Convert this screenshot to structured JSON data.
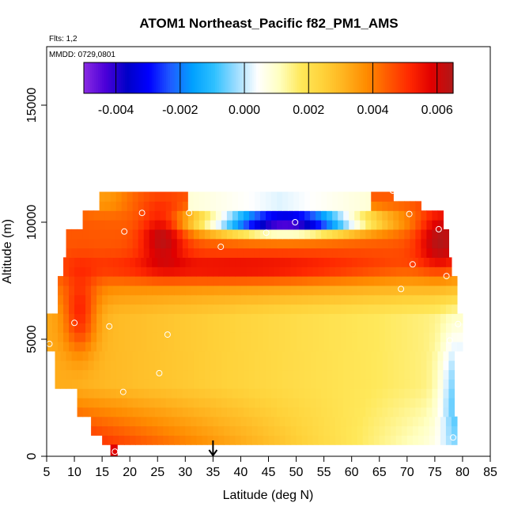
{
  "chart_data": {
    "type": "heatmap",
    "title": "ATOM1 Northeast_Pacific f82_PM1_AMS",
    "flights_text": "Flts: 1,2",
    "mmdd_text": "MMDD: 0729,0801",
    "xlabel": "Latitude (deg N)",
    "ylabel": "Altitude (m)",
    "xlim": [
      5,
      85
    ],
    "ylim": [
      0,
      17500
    ],
    "x_ticks": [
      "5",
      "10",
      "15",
      "20",
      "25",
      "30",
      "35",
      "40",
      "45",
      "50",
      "55",
      "60",
      "65",
      "70",
      "75",
      "80",
      "85"
    ],
    "x_tick_values": [
      5,
      10,
      15,
      20,
      25,
      30,
      35,
      40,
      45,
      50,
      55,
      60,
      65,
      70,
      75,
      80,
      85
    ],
    "y_ticks": [
      "0",
      "5000",
      "10000",
      "15000"
    ],
    "y_tick_values": [
      0,
      5000,
      10000,
      15000
    ],
    "colorbar": {
      "range": [
        -0.005,
        0.0065
      ],
      "ticks": [
        "-0.004",
        "-0.002",
        "0.000",
        "0.002",
        "0.004",
        "0.006"
      ],
      "tick_values": [
        -0.004,
        -0.002,
        0.0,
        0.002,
        0.004,
        0.006
      ],
      "colors": [
        "#8a2be2",
        "#4b00d9",
        "#0000c8",
        "#0000ff",
        "#1f5cff",
        "#00a0ff",
        "#2ec0ff",
        "#9adcff",
        "#ffffff",
        "#ffffc0",
        "#ffe85a",
        "#ffd23a",
        "#ffb21e",
        "#ff8c00",
        "#ff5a00",
        "#ff2800",
        "#e00000",
        "#b01818"
      ]
    },
    "marker_x": 35,
    "points": [
      {
        "lat": 5.5,
        "alt": 4800
      },
      {
        "lat": 10,
        "alt": 5700
      },
      {
        "lat": 16.3,
        "alt": 5550
      },
      {
        "lat": 17.3,
        "alt": 200
      },
      {
        "lat": 18.8,
        "alt": 2750
      },
      {
        "lat": 19,
        "alt": 9600
      },
      {
        "lat": 22.2,
        "alt": 10400
      },
      {
        "lat": 25.3,
        "alt": 3550
      },
      {
        "lat": 26.8,
        "alt": 5200
      },
      {
        "lat": 30.7,
        "alt": 10400
      },
      {
        "lat": 36.4,
        "alt": 8950
      },
      {
        "lat": 44.6,
        "alt": 9550
      },
      {
        "lat": 49.8,
        "alt": 10000
      },
      {
        "lat": 67.4,
        "alt": 11350
      },
      {
        "lat": 68.9,
        "alt": 7150
      },
      {
        "lat": 70.4,
        "alt": 10350
      },
      {
        "lat": 71,
        "alt": 8200
      },
      {
        "lat": 75.7,
        "alt": 9700
      },
      {
        "lat": 77.1,
        "alt": 7700
      },
      {
        "lat": 77.7,
        "alt": 4950
      },
      {
        "lat": 78.3,
        "alt": 800
      },
      {
        "lat": 79.2,
        "alt": 5650
      }
    ]
  }
}
